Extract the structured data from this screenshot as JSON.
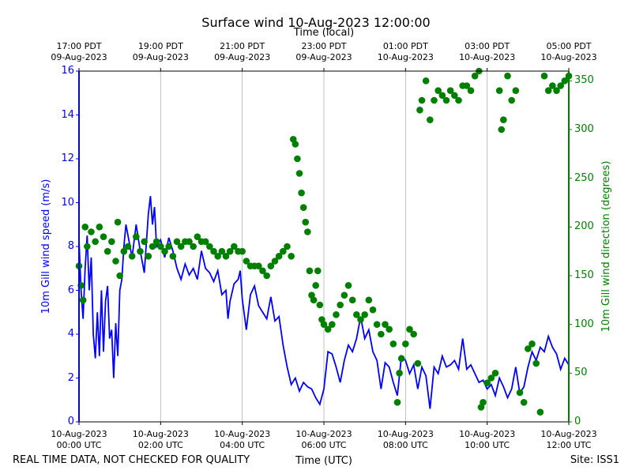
{
  "chart_data": {
    "type": "line",
    "title": "Surface wind 10-Aug-2023 12:00:00",
    "x2label": "Time (local)",
    "xlabel": "Time (UTC)",
    "ylabel": "10m Gill wind speed (m/s)",
    "y2label": "10m Gill wind direction (degrees)",
    "footer_left": "REAL TIME DATA, NOT CHECKED FOR QUALITY",
    "footer_right": "Site: ISS1",
    "grid": true,
    "xlim": [
      0,
      12
    ],
    "xticks": [
      {
        "value": 0,
        "label": "10-Aug-2023\n00:00 UTC"
      },
      {
        "value": 2,
        "label": "10-Aug-2023\n02:00 UTC"
      },
      {
        "value": 4,
        "label": "10-Aug-2023\n04:00 UTC"
      },
      {
        "value": 6,
        "label": "10-Aug-2023\n06:00 UTC"
      },
      {
        "value": 8,
        "label": "10-Aug-2023\n08:00 UTC"
      },
      {
        "value": 10,
        "label": "10-Aug-2023\n10:00 UTC"
      },
      {
        "value": 12,
        "label": "10-Aug-2023\n12:00 UTC"
      }
    ],
    "x2ticks": [
      {
        "value": 0,
        "label": "17:00 PDT\n09-Aug-2023"
      },
      {
        "value": 2,
        "label": "19:00 PDT\n09-Aug-2023"
      },
      {
        "value": 4,
        "label": "21:00 PDT\n09-Aug-2023"
      },
      {
        "value": 6,
        "label": "23:00 PDT\n09-Aug-2023"
      },
      {
        "value": 8,
        "label": "01:00 PDT\n10-Aug-2023"
      },
      {
        "value": 10,
        "label": "03:00 PDT\n10-Aug-2023"
      },
      {
        "value": 12,
        "label": "05:00 PDT\n10-Aug-2023"
      }
    ],
    "ylim": [
      0,
      16
    ],
    "yticks": [
      0,
      2,
      4,
      6,
      8,
      10,
      12,
      14,
      16
    ],
    "y2lim": [
      0,
      360
    ],
    "y2ticks": [
      0,
      50,
      100,
      150,
      200,
      250,
      300,
      350
    ],
    "series": [
      {
        "name": "10m Gill wind speed",
        "type": "line",
        "color": "#0000ff",
        "x": [
          0,
          0.05,
          0.1,
          0.15,
          0.2,
          0.25,
          0.3,
          0.35,
          0.4,
          0.45,
          0.5,
          0.55,
          0.6,
          0.65,
          0.7,
          0.75,
          0.8,
          0.85,
          0.9,
          0.95,
          1.0,
          1.05,
          1.1,
          1.15,
          1.2,
          1.3,
          1.4,
          1.5,
          1.6,
          1.7,
          1.75,
          1.8,
          1.85,
          1.9,
          2.0,
          2.1,
          2.2,
          2.3,
          2.4,
          2.5,
          2.6,
          2.7,
          2.8,
          2.9,
          3.0,
          3.1,
          3.2,
          3.3,
          3.4,
          3.5,
          3.6,
          3.65,
          3.7,
          3.8,
          3.9,
          3.95,
          4.0,
          4.1,
          4.2,
          4.3,
          4.4,
          4.5,
          4.6,
          4.7,
          4.8,
          4.9,
          5.0,
          5.1,
          5.2,
          5.3,
          5.4,
          5.5,
          5.6,
          5.7,
          5.8,
          5.9,
          6.0,
          6.1,
          6.2,
          6.3,
          6.4,
          6.5,
          6.6,
          6.7,
          6.8,
          6.9,
          7.0,
          7.1,
          7.2,
          7.3,
          7.4,
          7.5,
          7.6,
          7.7,
          7.8,
          7.9,
          8.0,
          8.1,
          8.2,
          8.3,
          8.4,
          8.5,
          8.6,
          8.7,
          8.8,
          8.9,
          9.0,
          9.1,
          9.2,
          9.3,
          9.4,
          9.5,
          9.6,
          9.7,
          9.8,
          9.9,
          10.0,
          10.1,
          10.2,
          10.3,
          10.4,
          10.5,
          10.6,
          10.7,
          10.8,
          10.9,
          11.0,
          11.1,
          11.2,
          11.3,
          11.4,
          11.5,
          11.6,
          11.7,
          11.8,
          11.9,
          12.0
        ],
        "values": [
          8.3,
          6,
          4.7,
          7,
          8.5,
          6,
          7.5,
          4,
          2.9,
          5,
          3,
          6,
          3.2,
          5.5,
          6.2,
          3.8,
          4.2,
          2,
          4.5,
          3,
          6,
          6.5,
          8,
          9,
          8.5,
          7.5,
          9,
          7.8,
          6.8,
          9.5,
          10.3,
          9,
          9.8,
          8,
          8.3,
          7.5,
          8.4,
          7.8,
          7,
          6.5,
          7.2,
          6.7,
          7,
          6.5,
          7.8,
          7,
          6.8,
          6.4,
          6.9,
          5.8,
          6,
          4.7,
          5.5,
          6.3,
          6.5,
          6.9,
          5.6,
          4.2,
          5.8,
          6.2,
          5.3,
          5,
          4.7,
          5.7,
          4.6,
          4.8,
          3.5,
          2.5,
          1.7,
          2,
          1.4,
          1.8,
          1.6,
          1.5,
          1.1,
          0.8,
          1.5,
          3.2,
          3.1,
          2.5,
          1.8,
          2.8,
          3.5,
          3.2,
          3.8,
          4.8,
          3.8,
          4.2,
          3.2,
          2.8,
          1.5,
          2.7,
          2.5,
          1.8,
          1.2,
          3.0,
          2.8,
          2.2,
          2.6,
          1.5,
          2.5,
          2.1,
          0.6,
          2.5,
          2.2,
          3,
          2.5,
          2.6,
          2.8,
          2.4,
          3.8,
          2.4,
          2.6,
          2.2,
          1.8,
          1.9,
          1.5,
          1.7,
          1.2,
          2,
          1.6,
          1.1,
          1.5,
          2.5,
          1.3,
          1.6,
          2.5,
          3.2,
          2.8,
          3.4,
          3.2,
          3.9,
          3.4,
          3.1,
          2.4,
          2.9,
          2.6
        ]
      },
      {
        "name": "10m Gill wind direction",
        "type": "scatter",
        "axis": "y2",
        "color": "#008000",
        "x": [
          0,
          0.05,
          0.1,
          0.15,
          0.2,
          0.3,
          0.4,
          0.5,
          0.6,
          0.7,
          0.8,
          0.9,
          0.95,
          1.0,
          1.1,
          1.2,
          1.3,
          1.4,
          1.5,
          1.6,
          1.7,
          1.8,
          1.9,
          2.0,
          2.1,
          2.2,
          2.3,
          2.4,
          2.5,
          2.6,
          2.7,
          2.8,
          2.9,
          3.0,
          3.1,
          3.2,
          3.3,
          3.4,
          3.5,
          3.6,
          3.7,
          3.8,
          3.9,
          4.0,
          4.1,
          4.2,
          4.3,
          4.4,
          4.5,
          4.6,
          4.7,
          4.8,
          4.9,
          5.0,
          5.1,
          5.2,
          5.25,
          5.3,
          5.35,
          5.4,
          5.45,
          5.5,
          5.55,
          5.6,
          5.65,
          5.7,
          5.75,
          5.8,
          5.85,
          5.9,
          5.95,
          6.0,
          6.1,
          6.2,
          6.3,
          6.4,
          6.5,
          6.6,
          6.7,
          6.8,
          6.9,
          7.0,
          7.1,
          7.2,
          7.3,
          7.4,
          7.5,
          7.6,
          7.7,
          7.8,
          7.85,
          7.9,
          8.0,
          8.1,
          8.2,
          8.3,
          8.35,
          8.4,
          8.5,
          8.6,
          8.7,
          8.8,
          8.9,
          9.0,
          9.1,
          9.2,
          9.3,
          9.4,
          9.5,
          9.6,
          9.7,
          9.8,
          9.85,
          9.9,
          10.0,
          10.1,
          10.2,
          10.3,
          10.35,
          10.4,
          10.5,
          10.6,
          10.7,
          10.8,
          10.9,
          11.0,
          11.1,
          11.2,
          11.3,
          11.4,
          11.5,
          11.6,
          11.7,
          11.8,
          11.9,
          12.0
        ],
        "values": [
          160,
          140,
          125,
          200,
          180,
          195,
          185,
          200,
          190,
          175,
          185,
          165,
          205,
          150,
          175,
          180,
          170,
          190,
          175,
          185,
          170,
          180,
          185,
          180,
          175,
          180,
          170,
          185,
          180,
          185,
          185,
          180,
          190,
          185,
          185,
          180,
          175,
          170,
          175,
          170,
          175,
          180,
          175,
          175,
          165,
          160,
          160,
          160,
          155,
          150,
          160,
          165,
          170,
          175,
          180,
          170,
          290,
          285,
          270,
          255,
          235,
          220,
          205,
          195,
          155,
          130,
          125,
          140,
          155,
          120,
          105,
          100,
          95,
          100,
          110,
          120,
          130,
          140,
          125,
          110,
          105,
          110,
          125,
          115,
          100,
          90,
          100,
          95,
          80,
          20,
          50,
          65,
          80,
          95,
          90,
          60,
          320,
          330,
          350,
          310,
          330,
          340,
          335,
          330,
          340,
          335,
          330,
          345,
          345,
          340,
          355,
          360,
          15,
          20,
          40,
          45,
          50,
          340,
          300,
          310,
          355,
          330,
          340,
          30,
          20,
          75,
          80,
          60,
          10,
          355,
          340,
          345,
          340,
          345,
          350,
          355
        ]
      }
    ]
  }
}
